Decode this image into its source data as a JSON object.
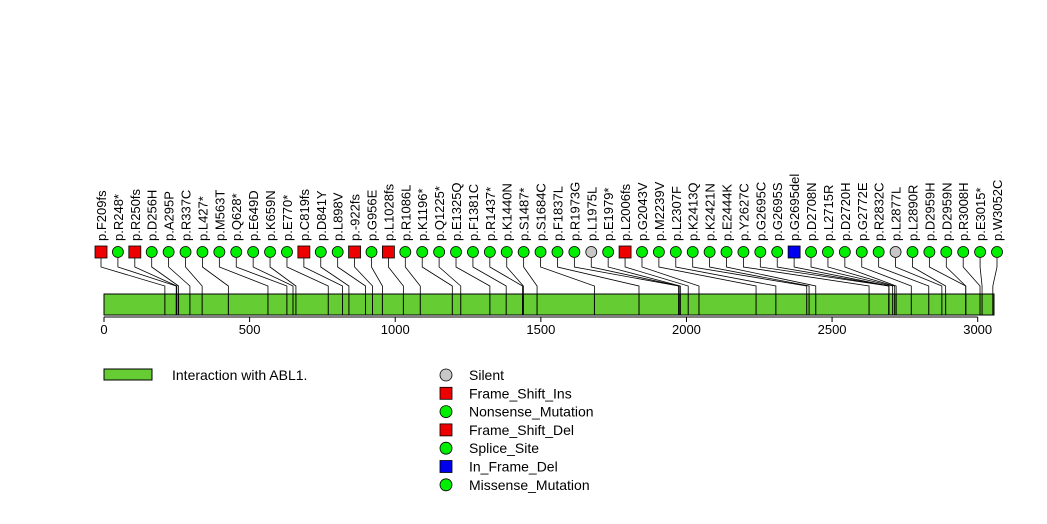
{
  "colors": {
    "domain_fill": "#66cc33",
    "silent": "#c8c8c8",
    "frame_shift": "#ee0000",
    "in_frame_del": "#0000ee",
    "point": "#00ee00"
  },
  "chart_data": {
    "type": "lollipop",
    "xlim": [
      0,
      3056
    ],
    "ticks": [
      0,
      500,
      1000,
      1500,
      2000,
      2500,
      3000
    ],
    "domains": [
      {
        "label": "Interaction with ABL1.",
        "start": 0,
        "end": 3056
      }
    ],
    "mutations": [
      {
        "label": "p.F209fs",
        "pos": 209,
        "type": "Frame_Shift_Del"
      },
      {
        "label": "p.R248*",
        "pos": 248,
        "type": "Nonsense_Mutation"
      },
      {
        "label": "p.R250fs",
        "pos": 250,
        "type": "Frame_Shift_Del"
      },
      {
        "label": "p.D256H",
        "pos": 256,
        "type": "Missense_Mutation"
      },
      {
        "label": "p.A295P",
        "pos": 295,
        "type": "Missense_Mutation"
      },
      {
        "label": "p.R337C",
        "pos": 337,
        "type": "Missense_Mutation"
      },
      {
        "label": "p.L427*",
        "pos": 427,
        "type": "Nonsense_Mutation"
      },
      {
        "label": "p.M563T",
        "pos": 563,
        "type": "Missense_Mutation"
      },
      {
        "label": "p.Q628*",
        "pos": 628,
        "type": "Nonsense_Mutation"
      },
      {
        "label": "p.E649D",
        "pos": 649,
        "type": "Missense_Mutation"
      },
      {
        "label": "p.K659N",
        "pos": 659,
        "type": "Missense_Mutation"
      },
      {
        "label": "p.E770*",
        "pos": 770,
        "type": "Nonsense_Mutation"
      },
      {
        "label": "p.C819fs",
        "pos": 819,
        "type": "Frame_Shift_Del"
      },
      {
        "label": "p.D841Y",
        "pos": 841,
        "type": "Missense_Mutation"
      },
      {
        "label": "p.L898V",
        "pos": 898,
        "type": "Missense_Mutation"
      },
      {
        "label": "p.-922fs",
        "pos": 922,
        "type": "Frame_Shift_Del"
      },
      {
        "label": "p.G956E",
        "pos": 956,
        "type": "Missense_Mutation"
      },
      {
        "label": "p.L1028fs",
        "pos": 1028,
        "type": "Frame_Shift_Del"
      },
      {
        "label": "p.R1086L",
        "pos": 1086,
        "type": "Missense_Mutation"
      },
      {
        "label": "p.K1196*",
        "pos": 1196,
        "type": "Nonsense_Mutation"
      },
      {
        "label": "p.Q1225*",
        "pos": 1225,
        "type": "Nonsense_Mutation"
      },
      {
        "label": "p.E1325Q",
        "pos": 1325,
        "type": "Missense_Mutation"
      },
      {
        "label": "p.F1381C",
        "pos": 1381,
        "type": "Missense_Mutation"
      },
      {
        "label": "p.R1437*",
        "pos": 1437,
        "type": "Nonsense_Mutation"
      },
      {
        "label": "p.K1440N",
        "pos": 1440,
        "type": "Missense_Mutation"
      },
      {
        "label": "p.S1487*",
        "pos": 1487,
        "type": "Nonsense_Mutation"
      },
      {
        "label": "p.S1684C",
        "pos": 1684,
        "type": "Missense_Mutation"
      },
      {
        "label": "p.F1837L",
        "pos": 1837,
        "type": "Missense_Mutation"
      },
      {
        "label": "p.R1973G",
        "pos": 1973,
        "type": "Missense_Mutation"
      },
      {
        "label": "p.L1975L",
        "pos": 1975,
        "type": "Silent"
      },
      {
        "label": "p.E1979*",
        "pos": 1979,
        "type": "Nonsense_Mutation"
      },
      {
        "label": "p.L2006fs",
        "pos": 2006,
        "type": "Frame_Shift_Del"
      },
      {
        "label": "p.G2043V",
        "pos": 2043,
        "type": "Missense_Mutation"
      },
      {
        "label": "p.M2239V",
        "pos": 2239,
        "type": "Missense_Mutation"
      },
      {
        "label": "p.L2307F",
        "pos": 2307,
        "type": "Missense_Mutation"
      },
      {
        "label": "p.K2413Q",
        "pos": 2413,
        "type": "Missense_Mutation"
      },
      {
        "label": "p.K2421N",
        "pos": 2421,
        "type": "Missense_Mutation"
      },
      {
        "label": "p.E2444K",
        "pos": 2444,
        "type": "Missense_Mutation"
      },
      {
        "label": "p.Y2627C",
        "pos": 2627,
        "type": "Missense_Mutation"
      },
      {
        "label": "p.G2695C",
        "pos": 2695,
        "type": "Missense_Mutation"
      },
      {
        "label": "p.G2695S",
        "pos": 2695,
        "type": "Missense_Mutation"
      },
      {
        "label": "p.G2695del",
        "pos": 2695,
        "type": "In_Frame_Del"
      },
      {
        "label": "p.D2708N",
        "pos": 2708,
        "type": "Missense_Mutation"
      },
      {
        "label": "p.L2715R",
        "pos": 2715,
        "type": "Missense_Mutation"
      },
      {
        "label": "p.D2720H",
        "pos": 2720,
        "type": "Missense_Mutation"
      },
      {
        "label": "p.G2772E",
        "pos": 2772,
        "type": "Missense_Mutation"
      },
      {
        "label": "p.R2832C",
        "pos": 2832,
        "type": "Missense_Mutation"
      },
      {
        "label": "p.L2877L",
        "pos": 2877,
        "type": "Silent"
      },
      {
        "label": "p.L2890R",
        "pos": 2890,
        "type": "Missense_Mutation"
      },
      {
        "label": "p.D2959H",
        "pos": 2959,
        "type": "Missense_Mutation"
      },
      {
        "label": "p.D2959N",
        "pos": 2959,
        "type": "Missense_Mutation"
      },
      {
        "label": "p.R3008H",
        "pos": 3008,
        "type": "Missense_Mutation"
      },
      {
        "label": "p.E3015*",
        "pos": 3015,
        "type": "Nonsense_Mutation"
      },
      {
        "label": "p.W3052C",
        "pos": 3052,
        "type": "Missense_Mutation"
      }
    ],
    "legend": [
      {
        "label": "Silent",
        "shape": "circle",
        "color": "#c8c8c8"
      },
      {
        "label": "Frame_Shift_Ins",
        "shape": "square",
        "color": "#ee0000"
      },
      {
        "label": "Nonsense_Mutation",
        "shape": "circle",
        "color": "#00ee00"
      },
      {
        "label": "Frame_Shift_Del",
        "shape": "square",
        "color": "#ee0000"
      },
      {
        "label": "Splice_Site",
        "shape": "circle",
        "color": "#00ee00"
      },
      {
        "label": "In_Frame_Del",
        "shape": "square",
        "color": "#0000ee"
      },
      {
        "label": "Missense_Mutation",
        "shape": "circle",
        "color": "#00ee00"
      }
    ]
  }
}
